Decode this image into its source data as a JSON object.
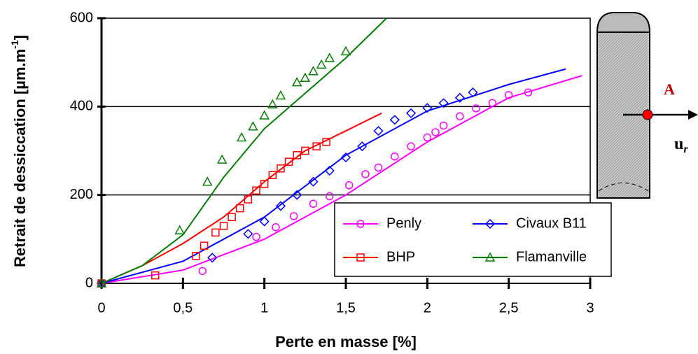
{
  "chart_data": {
    "type": "scatter",
    "xlabel": "Perte en masse [%]",
    "ylabel": {
      "text": "Retrait de dessiccation [µm.m",
      "sup": "-1",
      "end": "]"
    },
    "xlim": [
      0,
      3
    ],
    "ylim": [
      0,
      600
    ],
    "xticks": [
      0,
      {
        "value": 0.5,
        "label": "0,5"
      },
      1,
      {
        "value": 1.5,
        "label": "1,5"
      },
      2,
      {
        "value": 2.5,
        "label": "2,5"
      },
      3
    ],
    "yticks": [
      0,
      200,
      400,
      600
    ],
    "grid": true,
    "legend": "lower right",
    "series": [
      {
        "name": "Penly",
        "color": "#ff00ff",
        "marker": "circle",
        "x": [
          0,
          0.62,
          0.95,
          1.07,
          1.18,
          1.3,
          1.4,
          1.52,
          1.62,
          1.7,
          1.8,
          1.9,
          2.0,
          2.05,
          2.1,
          2.2,
          2.3,
          2.4,
          2.5,
          2.62
        ],
        "values": [
          0,
          28,
          105,
          127,
          152,
          180,
          197,
          222,
          247,
          262,
          287,
          310,
          330,
          342,
          357,
          378,
          396,
          408,
          426,
          432
        ],
        "model": {
          "x": [
            0,
            0.5,
            1,
            1.5,
            2,
            2.5,
            2.95
          ],
          "values": [
            0,
            30,
            100,
            200,
            320,
            420,
            470
          ]
        }
      },
      {
        "name": "Civaux B11",
        "color": "#0000ff",
        "marker": "diamond",
        "x": [
          0,
          0.68,
          0.9,
          1.0,
          1.1,
          1.2,
          1.3,
          1.4,
          1.5,
          1.6,
          1.7,
          1.8,
          1.9,
          2.0,
          2.1,
          2.2,
          2.28
        ],
        "values": [
          0,
          58,
          112,
          140,
          175,
          200,
          230,
          255,
          285,
          310,
          345,
          370,
          385,
          397,
          408,
          420,
          432
        ],
        "model": {
          "x": [
            0,
            0.5,
            1,
            1.5,
            2,
            2.5,
            2.85
          ],
          "values": [
            0,
            50,
            150,
            290,
            390,
            450,
            485
          ]
        }
      },
      {
        "name": "BHP",
        "color": "#ff0000",
        "marker": "square",
        "x": [
          0,
          0.33,
          0.58,
          0.63,
          0.7,
          0.75,
          0.8,
          0.85,
          0.9,
          0.95,
          1.0,
          1.05,
          1.1,
          1.15,
          1.2,
          1.25,
          1.32,
          1.38
        ],
        "values": [
          0,
          18,
          62,
          85,
          115,
          130,
          150,
          170,
          190,
          210,
          225,
          245,
          260,
          275,
          290,
          300,
          310,
          320
        ],
        "model": {
          "x": [
            0,
            0.25,
            0.5,
            0.75,
            1,
            1.25,
            1.5,
            1.72
          ],
          "values": [
            0,
            40,
            90,
            150,
            230,
            300,
            345,
            385
          ]
        }
      },
      {
        "name": "Flamanville",
        "color": "#008000",
        "marker": "triangle",
        "x": [
          0,
          0.48,
          0.65,
          0.74,
          0.86,
          0.93,
          1.0,
          1.05,
          1.1,
          1.2,
          1.25,
          1.3,
          1.35,
          1.4,
          1.5
        ],
        "values": [
          0,
          120,
          230,
          280,
          330,
          355,
          380,
          405,
          425,
          455,
          465,
          480,
          495,
          510,
          525
        ],
        "model": {
          "x": [
            0,
            0.25,
            0.5,
            0.75,
            1,
            1.25,
            1.5,
            1.75
          ],
          "values": [
            0,
            40,
            110,
            240,
            350,
            430,
            510,
            600
          ]
        }
      }
    ],
    "annotations": {
      "point": "A",
      "vector": "u",
      "subscript": "r"
    }
  }
}
